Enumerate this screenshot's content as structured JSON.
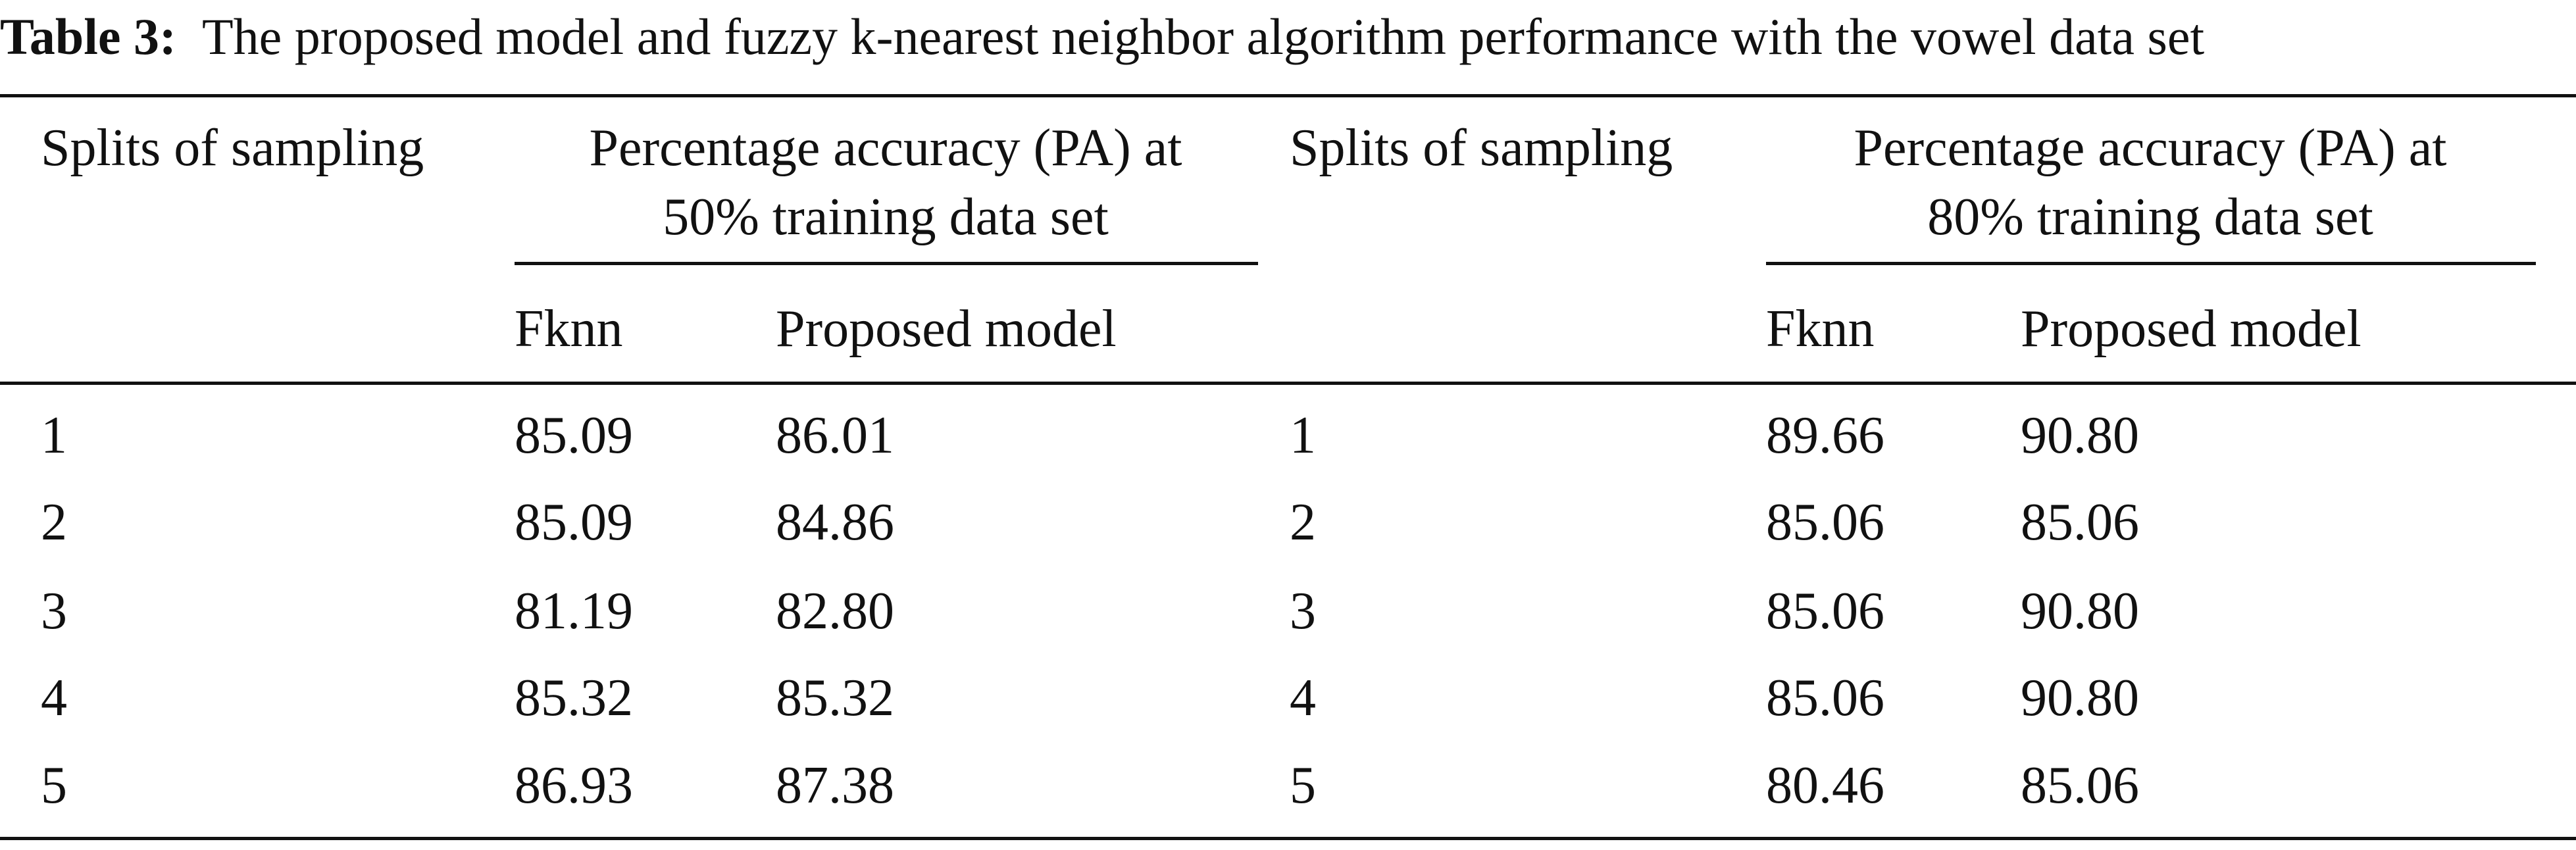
{
  "caption": {
    "label": "Table 3:",
    "text": "The proposed model and fuzzy k-nearest neighbor algorithm performance with the vowel data set"
  },
  "table": {
    "header": [
      [
        "Splits of sampling"
      ],
      [
        "Percentage accuracy (PA) at",
        "50% training data set"
      ],
      [
        "Splits of sampling"
      ],
      [
        "Percentage accuracy (PA) at",
        "80% training data set"
      ]
    ],
    "subheader": [
      "Fknn",
      "Proposed model",
      "Fknn",
      "Proposed model"
    ],
    "rows": [
      [
        "1",
        "85.09",
        "86.01",
        "1",
        "89.66",
        "90.80"
      ],
      [
        "2",
        "85.09",
        "84.86",
        "2",
        "85.06",
        "85.06"
      ],
      [
        "3",
        "81.19",
        "82.80",
        "3",
        "85.06",
        "90.80"
      ],
      [
        "4",
        "85.32",
        "85.32",
        "4",
        "85.06",
        "90.80"
      ],
      [
        "5",
        "86.93",
        "87.38",
        "5",
        "80.46",
        "85.06"
      ]
    ]
  }
}
